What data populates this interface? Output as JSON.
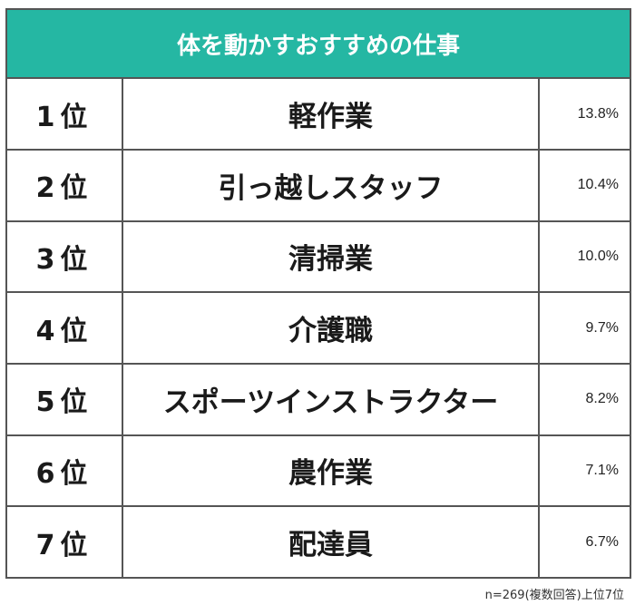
{
  "chart_data": {
    "type": "table",
    "title": "体を動かすおすすめの仕事",
    "rows": [
      {
        "rank": "1位",
        "job": "軽作業",
        "percent": "13.8%",
        "value": 13.8
      },
      {
        "rank": "2位",
        "job": "引っ越しスタッフ",
        "percent": "10.4%",
        "value": 10.4
      },
      {
        "rank": "3位",
        "job": "清掃業",
        "percent": "10.0%",
        "value": 10.0
      },
      {
        "rank": "4位",
        "job": "介護職",
        "percent": "9.7%",
        "value": 9.7
      },
      {
        "rank": "5位",
        "job": "スポーツインストラクター",
        "percent": "8.2%",
        "value": 8.2
      },
      {
        "rank": "6位",
        "job": "農作業",
        "percent": "7.1%",
        "value": 7.1
      },
      {
        "rank": "7位",
        "job": "配達員",
        "percent": "6.7%",
        "value": 6.7
      }
    ],
    "footnote": "n=269(複数回答)上位7位"
  },
  "colors": {
    "header_bg": "#25b7a3",
    "header_text": "#ffffff",
    "border": "#555555"
  }
}
